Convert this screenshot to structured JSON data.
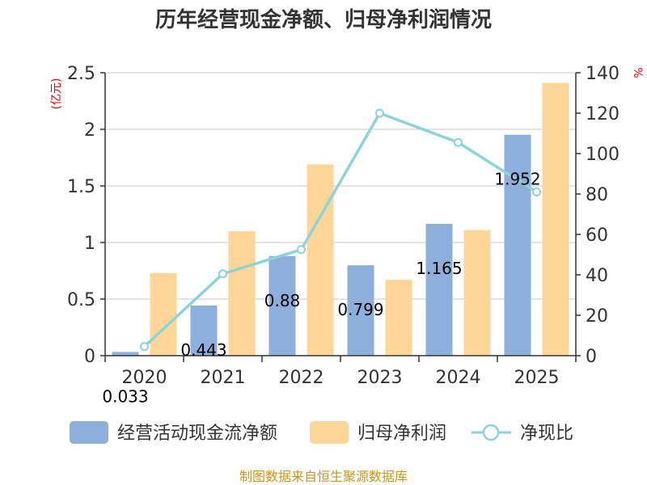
{
  "chart_data": {
    "type": "bar+line",
    "title": "历年经营现金净额、归母净利润情况",
    "categories": [
      "2020",
      "2021",
      "2022",
      "2023",
      "2024",
      "2025"
    ],
    "left_axis": {
      "unit": "(亿元)",
      "range": [
        0,
        2.5
      ],
      "ticks": [
        "0",
        "0.5",
        "1",
        "1.5",
        "2",
        "2.5"
      ],
      "tick_values": [
        0,
        0.5,
        1,
        1.5,
        2,
        2.5
      ]
    },
    "right_axis": {
      "unit": "%",
      "range": [
        0,
        140
      ],
      "ticks": [
        "0",
        "20",
        "40",
        "60",
        "80",
        "100",
        "120",
        "140"
      ],
      "tick_values": [
        0,
        20,
        40,
        60,
        80,
        100,
        120,
        140
      ]
    },
    "series": [
      {
        "name": "经营活动现金流净额",
        "type": "bar",
        "axis": "left",
        "color": "#8eaedb",
        "values": [
          0.033,
          0.443,
          0.88,
          0.799,
          1.165,
          1.952
        ],
        "labels": [
          "0.033",
          "0.443",
          "0.88",
          "0.799",
          "1.165",
          "1.952"
        ]
      },
      {
        "name": "归母净利润",
        "type": "bar",
        "axis": "left",
        "color": "#fdd698",
        "values": [
          0.73,
          1.1,
          1.69,
          0.67,
          1.11,
          2.41
        ]
      },
      {
        "name": "净现比",
        "type": "line",
        "axis": "right",
        "color": "#8dd3d8",
        "values": [
          4.5,
          40.5,
          52.5,
          120,
          105.5,
          81
        ]
      }
    ],
    "legend_position": "bottom"
  },
  "source_text": "制图数据来自恒生聚源数据库"
}
